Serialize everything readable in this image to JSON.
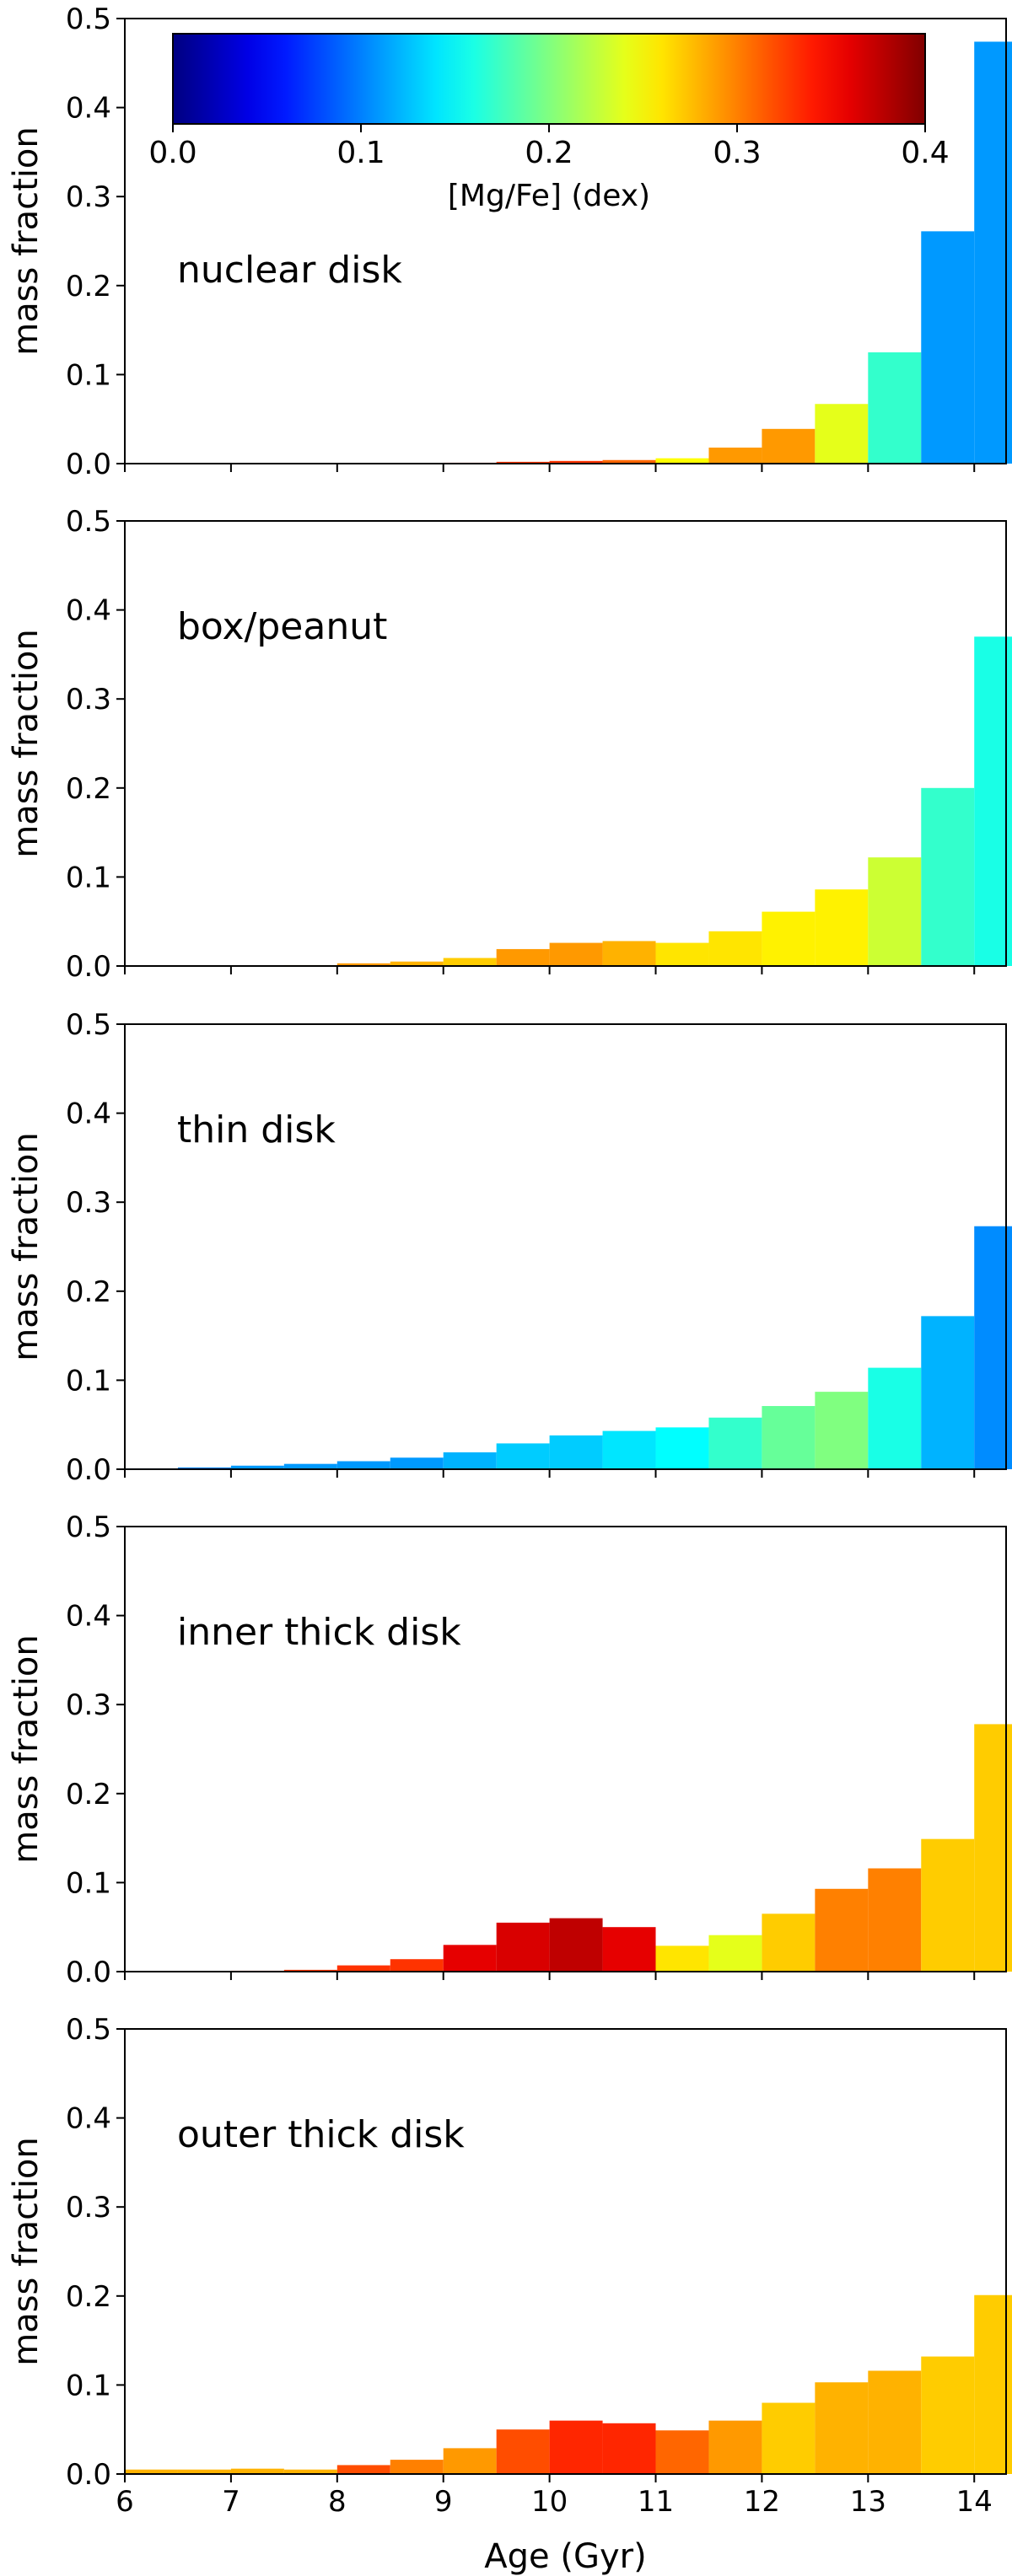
{
  "chart_data": {
    "type": "bar",
    "shared_x": {
      "label": "Age (Gyr)",
      "lim": [
        6,
        14.3
      ],
      "ticks": [
        6,
        7,
        8,
        9,
        10,
        11,
        12,
        13,
        14
      ],
      "tick_labels": [
        "6",
        "7",
        "8",
        "9",
        "10",
        "11",
        "12",
        "13",
        "14"
      ]
    },
    "bin_width": 0.5,
    "colorbar": {
      "label": "[Mg/Fe] (dex)",
      "range": [
        0.0,
        0.4
      ],
      "colormap": "jet",
      "ticks": [
        0.0,
        0.1,
        0.2,
        0.3,
        0.4
      ],
      "tick_labels": [
        "0.0",
        "0.1",
        "0.2",
        "0.3",
        "0.4"
      ],
      "placement": "inside top of first panel"
    },
    "panels": [
      {
        "title": "nuclear disk",
        "ylabel": "mass fraction",
        "ylim": [
          0,
          0.5
        ],
        "yticks": [
          "0.0",
          "0.1",
          "0.2",
          "0.3",
          "0.4",
          "0.5"
        ],
        "bars": [
          {
            "x": 6.0,
            "value": 0.0,
            "mgfe": 0.35
          },
          {
            "x": 6.5,
            "value": 0.0,
            "mgfe": 0.35
          },
          {
            "x": 7.0,
            "value": 0.0,
            "mgfe": 0.35
          },
          {
            "x": 7.5,
            "value": 0.0,
            "mgfe": 0.35
          },
          {
            "x": 8.0,
            "value": 0.0,
            "mgfe": 0.35
          },
          {
            "x": 8.5,
            "value": 0.0,
            "mgfe": 0.35
          },
          {
            "x": 9.0,
            "value": 0.001,
            "mgfe": 0.34
          },
          {
            "x": 9.5,
            "value": 0.002,
            "mgfe": 0.33
          },
          {
            "x": 10.0,
            "value": 0.003,
            "mgfe": 0.33
          },
          {
            "x": 10.5,
            "value": 0.004,
            "mgfe": 0.31
          },
          {
            "x": 11.0,
            "value": 0.006,
            "mgfe": 0.25
          },
          {
            "x": 11.5,
            "value": 0.018,
            "mgfe": 0.29
          },
          {
            "x": 12.0,
            "value": 0.039,
            "mgfe": 0.29
          },
          {
            "x": 12.5,
            "value": 0.067,
            "mgfe": 0.24
          },
          {
            "x": 13.0,
            "value": 0.125,
            "mgfe": 0.17
          },
          {
            "x": 13.5,
            "value": 0.261,
            "mgfe": 0.11
          },
          {
            "x": 14.0,
            "value": 0.474,
            "mgfe": 0.11
          }
        ]
      },
      {
        "title": "box/peanut",
        "ylabel": "mass fraction",
        "ylim": [
          0,
          0.5
        ],
        "yticks": [
          "0.0",
          "0.1",
          "0.2",
          "0.3",
          "0.4",
          "0.5"
        ],
        "bars": [
          {
            "x": 6.0,
            "value": 0.0,
            "mgfe": 0.3
          },
          {
            "x": 6.5,
            "value": 0.0,
            "mgfe": 0.3
          },
          {
            "x": 7.0,
            "value": 0.0,
            "mgfe": 0.3
          },
          {
            "x": 7.5,
            "value": 0.001,
            "mgfe": 0.29
          },
          {
            "x": 8.0,
            "value": 0.003,
            "mgfe": 0.29
          },
          {
            "x": 8.5,
            "value": 0.005,
            "mgfe": 0.28
          },
          {
            "x": 9.0,
            "value": 0.009,
            "mgfe": 0.27
          },
          {
            "x": 9.5,
            "value": 0.019,
            "mgfe": 0.29
          },
          {
            "x": 10.0,
            "value": 0.026,
            "mgfe": 0.29
          },
          {
            "x": 10.5,
            "value": 0.028,
            "mgfe": 0.28
          },
          {
            "x": 11.0,
            "value": 0.026,
            "mgfe": 0.26
          },
          {
            "x": 11.5,
            "value": 0.039,
            "mgfe": 0.26
          },
          {
            "x": 12.0,
            "value": 0.061,
            "mgfe": 0.255
          },
          {
            "x": 12.5,
            "value": 0.086,
            "mgfe": 0.255
          },
          {
            "x": 13.0,
            "value": 0.122,
            "mgfe": 0.23
          },
          {
            "x": 13.5,
            "value": 0.2,
            "mgfe": 0.17
          },
          {
            "x": 14.0,
            "value": 0.37,
            "mgfe": 0.16
          }
        ]
      },
      {
        "title": "thin disk",
        "ylabel": "mass fraction",
        "ylim": [
          0,
          0.5
        ],
        "yticks": [
          "0.0",
          "0.1",
          "0.2",
          "0.3",
          "0.4",
          "0.5"
        ],
        "bars": [
          {
            "x": 6.0,
            "value": 0.001,
            "mgfe": 0.1
          },
          {
            "x": 6.5,
            "value": 0.002,
            "mgfe": 0.1
          },
          {
            "x": 7.0,
            "value": 0.004,
            "mgfe": 0.11
          },
          {
            "x": 7.5,
            "value": 0.006,
            "mgfe": 0.11
          },
          {
            "x": 8.0,
            "value": 0.009,
            "mgfe": 0.11
          },
          {
            "x": 8.5,
            "value": 0.013,
            "mgfe": 0.11
          },
          {
            "x": 9.0,
            "value": 0.019,
            "mgfe": 0.12
          },
          {
            "x": 9.5,
            "value": 0.029,
            "mgfe": 0.13
          },
          {
            "x": 10.0,
            "value": 0.038,
            "mgfe": 0.13
          },
          {
            "x": 10.5,
            "value": 0.043,
            "mgfe": 0.14
          },
          {
            "x": 11.0,
            "value": 0.047,
            "mgfe": 0.15
          },
          {
            "x": 11.5,
            "value": 0.058,
            "mgfe": 0.17
          },
          {
            "x": 12.0,
            "value": 0.071,
            "mgfe": 0.19
          },
          {
            "x": 12.5,
            "value": 0.087,
            "mgfe": 0.2
          },
          {
            "x": 13.0,
            "value": 0.114,
            "mgfe": 0.16
          },
          {
            "x": 13.5,
            "value": 0.172,
            "mgfe": 0.12
          },
          {
            "x": 14.0,
            "value": 0.273,
            "mgfe": 0.105
          }
        ]
      },
      {
        "title": "inner thick disk",
        "ylabel": "mass fraction",
        "ylim": [
          0,
          0.5
        ],
        "yticks": [
          "0.0",
          "0.1",
          "0.2",
          "0.3",
          "0.4",
          "0.5"
        ],
        "bars": [
          {
            "x": 6.0,
            "value": 0.0,
            "mgfe": 0.33
          },
          {
            "x": 6.5,
            "value": 0.0,
            "mgfe": 0.33
          },
          {
            "x": 7.0,
            "value": 0.001,
            "mgfe": 0.33
          },
          {
            "x": 7.5,
            "value": 0.002,
            "mgfe": 0.33
          },
          {
            "x": 8.0,
            "value": 0.007,
            "mgfe": 0.33
          },
          {
            "x": 8.5,
            "value": 0.014,
            "mgfe": 0.33
          },
          {
            "x": 9.0,
            "value": 0.03,
            "mgfe": 0.36
          },
          {
            "x": 9.5,
            "value": 0.055,
            "mgfe": 0.365
          },
          {
            "x": 10.0,
            "value": 0.06,
            "mgfe": 0.375
          },
          {
            "x": 10.5,
            "value": 0.05,
            "mgfe": 0.36
          },
          {
            "x": 11.0,
            "value": 0.029,
            "mgfe": 0.26
          },
          {
            "x": 11.5,
            "value": 0.041,
            "mgfe": 0.24
          },
          {
            "x": 12.0,
            "value": 0.065,
            "mgfe": 0.27
          },
          {
            "x": 12.5,
            "value": 0.093,
            "mgfe": 0.3
          },
          {
            "x": 13.0,
            "value": 0.116,
            "mgfe": 0.3
          },
          {
            "x": 13.5,
            "value": 0.149,
            "mgfe": 0.27
          },
          {
            "x": 14.0,
            "value": 0.278,
            "mgfe": 0.27
          }
        ]
      },
      {
        "title": "outer thick disk",
        "ylabel": "mass fraction",
        "ylim": [
          0,
          0.5
        ],
        "yticks": [
          "0.0",
          "0.1",
          "0.2",
          "0.3",
          "0.4",
          "0.5"
        ],
        "bars": [
          {
            "x": 6.0,
            "value": 0.005,
            "mgfe": 0.28
          },
          {
            "x": 6.5,
            "value": 0.005,
            "mgfe": 0.28
          },
          {
            "x": 7.0,
            "value": 0.006,
            "mgfe": 0.28
          },
          {
            "x": 7.5,
            "value": 0.005,
            "mgfe": 0.28
          },
          {
            "x": 8.0,
            "value": 0.01,
            "mgfe": 0.32
          },
          {
            "x": 8.5,
            "value": 0.016,
            "mgfe": 0.3
          },
          {
            "x": 9.0,
            "value": 0.029,
            "mgfe": 0.29
          },
          {
            "x": 9.5,
            "value": 0.05,
            "mgfe": 0.32
          },
          {
            "x": 10.0,
            "value": 0.06,
            "mgfe": 0.335
          },
          {
            "x": 10.5,
            "value": 0.057,
            "mgfe": 0.335
          },
          {
            "x": 11.0,
            "value": 0.049,
            "mgfe": 0.31
          },
          {
            "x": 11.5,
            "value": 0.06,
            "mgfe": 0.29
          },
          {
            "x": 12.0,
            "value": 0.08,
            "mgfe": 0.27
          },
          {
            "x": 12.5,
            "value": 0.103,
            "mgfe": 0.28
          },
          {
            "x": 13.0,
            "value": 0.116,
            "mgfe": 0.28
          },
          {
            "x": 13.5,
            "value": 0.132,
            "mgfe": 0.27
          },
          {
            "x": 14.0,
            "value": 0.201,
            "mgfe": 0.27
          }
        ]
      }
    ]
  }
}
